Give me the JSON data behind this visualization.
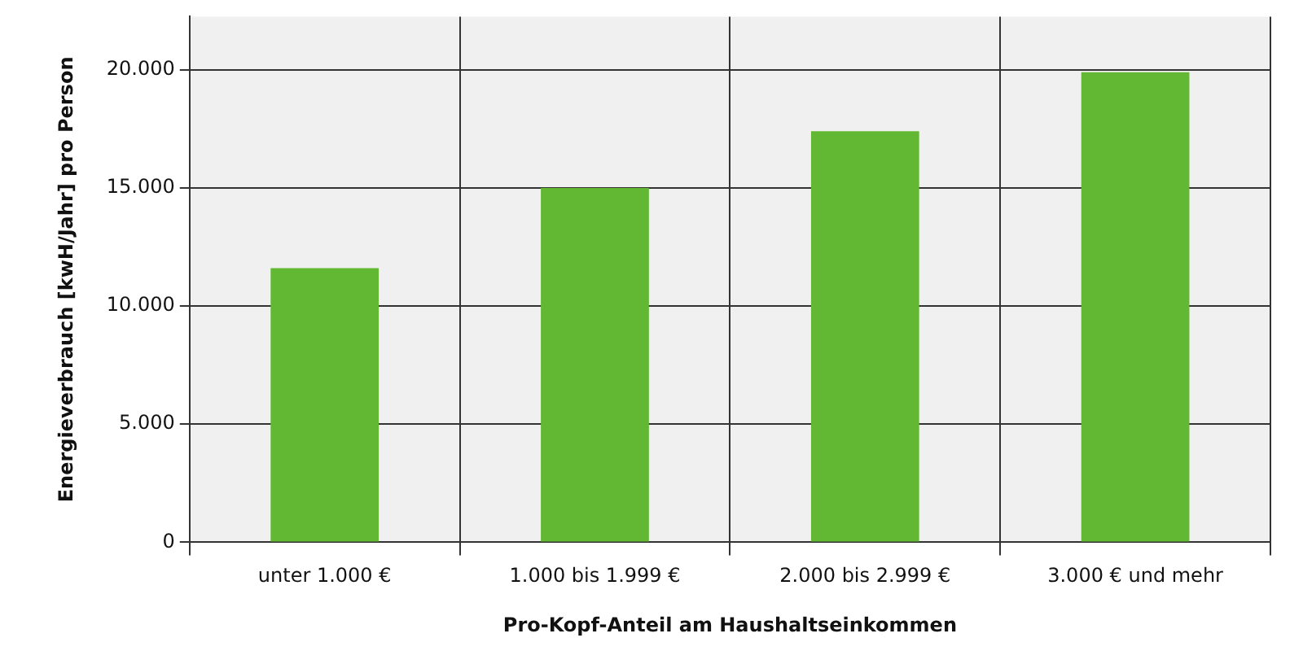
{
  "chart_data": {
    "type": "bar",
    "xlabel": "Pro-Kopf-Anteil am Haushaltseinkommen",
    "ylabel": "Energieverbrauch [kwH/Jahr] pro Person",
    "categories": [
      "unter 1.000 €",
      "1.000 bis 1.999 €",
      "2.000 bis 2.999 €",
      "3.000 € und mehr"
    ],
    "values": [
      11600,
      15000,
      17400,
      19900
    ],
    "color": "#62b832",
    "ylim": [
      0,
      22250
    ],
    "yticks": [
      {
        "value": 0,
        "label": "0"
      },
      {
        "value": 5000,
        "label": "5.000"
      },
      {
        "value": 10000,
        "label": "10.000"
      },
      {
        "value": 15000,
        "label": "15.000"
      },
      {
        "value": 20000,
        "label": "20.000"
      }
    ],
    "grid": true,
    "legend": false
  }
}
